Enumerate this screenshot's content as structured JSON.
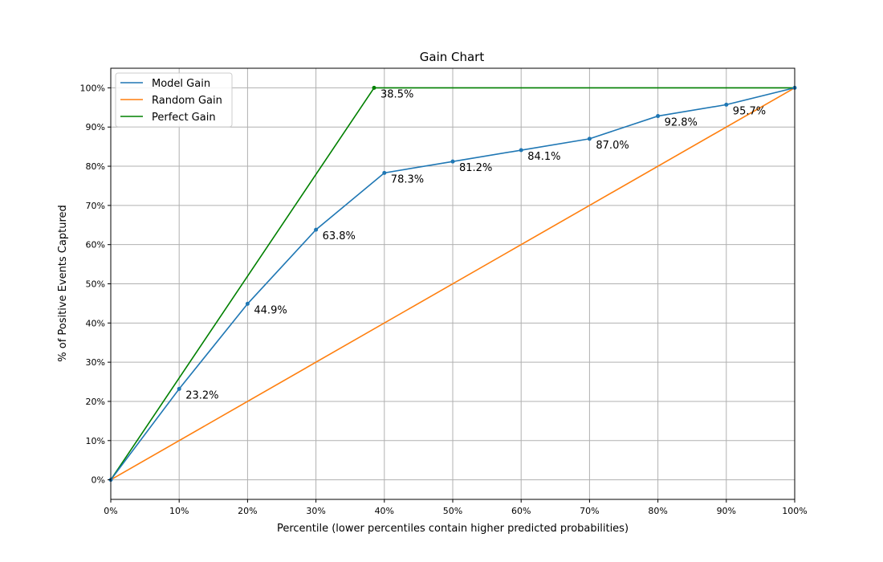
{
  "chart_data": {
    "type": "line",
    "title": "Gain Chart",
    "xlabel": "Percentile (lower percentiles contain higher predicted probabilities)",
    "ylabel": "% of Positive Events Captured",
    "xlim": [
      0,
      100
    ],
    "ylim": [
      -5,
      105
    ],
    "x_ticks": [
      0,
      10,
      20,
      30,
      40,
      50,
      60,
      70,
      80,
      90,
      100
    ],
    "x_tick_labels": [
      "0%",
      "10%",
      "20%",
      "30%",
      "40%",
      "50%",
      "60%",
      "70%",
      "80%",
      "90%",
      "100%"
    ],
    "y_ticks": [
      0,
      10,
      20,
      30,
      40,
      50,
      60,
      70,
      80,
      90,
      100
    ],
    "y_tick_labels": [
      "0%",
      "10%",
      "20%",
      "30%",
      "40%",
      "50%",
      "60%",
      "70%",
      "80%",
      "90%",
      "100%"
    ],
    "grid": true,
    "legend_position": "top-left",
    "series": [
      {
        "name": "Model Gain",
        "color": "#1f77b4",
        "markers": true,
        "x": [
          0,
          10,
          20,
          30,
          40,
          50,
          60,
          70,
          80,
          90,
          100
        ],
        "y": [
          0,
          23.2,
          44.9,
          63.8,
          78.3,
          81.2,
          84.1,
          87.0,
          92.8,
          95.7,
          100
        ]
      },
      {
        "name": "Random Gain",
        "color": "#ff7f0e",
        "markers": false,
        "x": [
          0,
          100
        ],
        "y": [
          0,
          100
        ]
      },
      {
        "name": "Perfect Gain",
        "color": "#008000",
        "markers": false,
        "x": [
          0,
          38.5,
          100
        ],
        "y": [
          0,
          100,
          100
        ]
      }
    ],
    "annotations": [
      {
        "x": 10,
        "y": 23.2,
        "text": "23.2%"
      },
      {
        "x": 20,
        "y": 44.9,
        "text": "44.9%"
      },
      {
        "x": 30,
        "y": 63.8,
        "text": "63.8%"
      },
      {
        "x": 40,
        "y": 78.3,
        "text": "78.3%"
      },
      {
        "x": 50,
        "y": 81.2,
        "text": "81.2%"
      },
      {
        "x": 60,
        "y": 84.1,
        "text": "84.1%"
      },
      {
        "x": 70,
        "y": 87.0,
        "text": "87.0%"
      },
      {
        "x": 80,
        "y": 92.8,
        "text": "92.8%"
      },
      {
        "x": 90,
        "y": 95.7,
        "text": "95.7%"
      },
      {
        "x": 38.5,
        "y": 100,
        "text": "38.5%",
        "marker": true,
        "marker_color": "#008000"
      }
    ]
  }
}
